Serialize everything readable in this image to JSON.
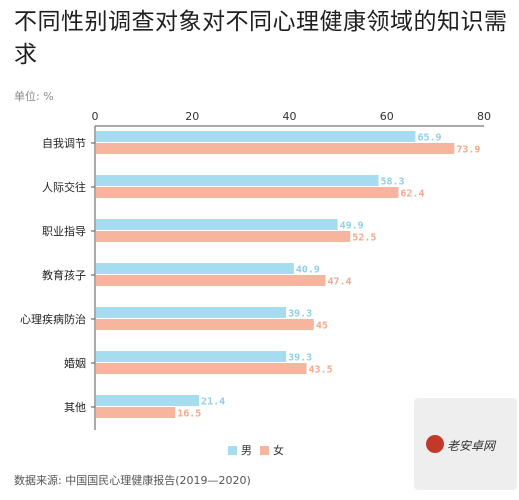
{
  "title": "不同性别调查对象对不同心理健康领域的知识需求",
  "unit": "单位: %",
  "source": "数据来源:  中国国民心理健康报告(2019—2020)",
  "watermark": "老安卓网",
  "colors": {
    "male": "#a6dcf0",
    "female": "#f7b59f",
    "male_label": "#8fd0e8",
    "female_label": "#f4a88d",
    "axis": "#555555"
  },
  "chart_data": {
    "type": "bar",
    "orientation": "horizontal",
    "categories": [
      "自我调节",
      "人际交往",
      "职业指导",
      "教育孩子",
      "心理疾病防治",
      "婚姻",
      "其他"
    ],
    "series": [
      {
        "name": "男",
        "values": [
          65.9,
          58.3,
          49.9,
          40.9,
          39.3,
          39.3,
          21.4
        ]
      },
      {
        "name": "女",
        "values": [
          73.9,
          62.4,
          52.5,
          47.4,
          45,
          43.5,
          16.5
        ]
      }
    ],
    "xlim": [
      0,
      80
    ],
    "xticks": [
      0,
      20,
      40,
      60,
      80
    ],
    "grid": false,
    "legend": "bottom-center"
  },
  "legend": {
    "male": "男",
    "female": "女"
  }
}
